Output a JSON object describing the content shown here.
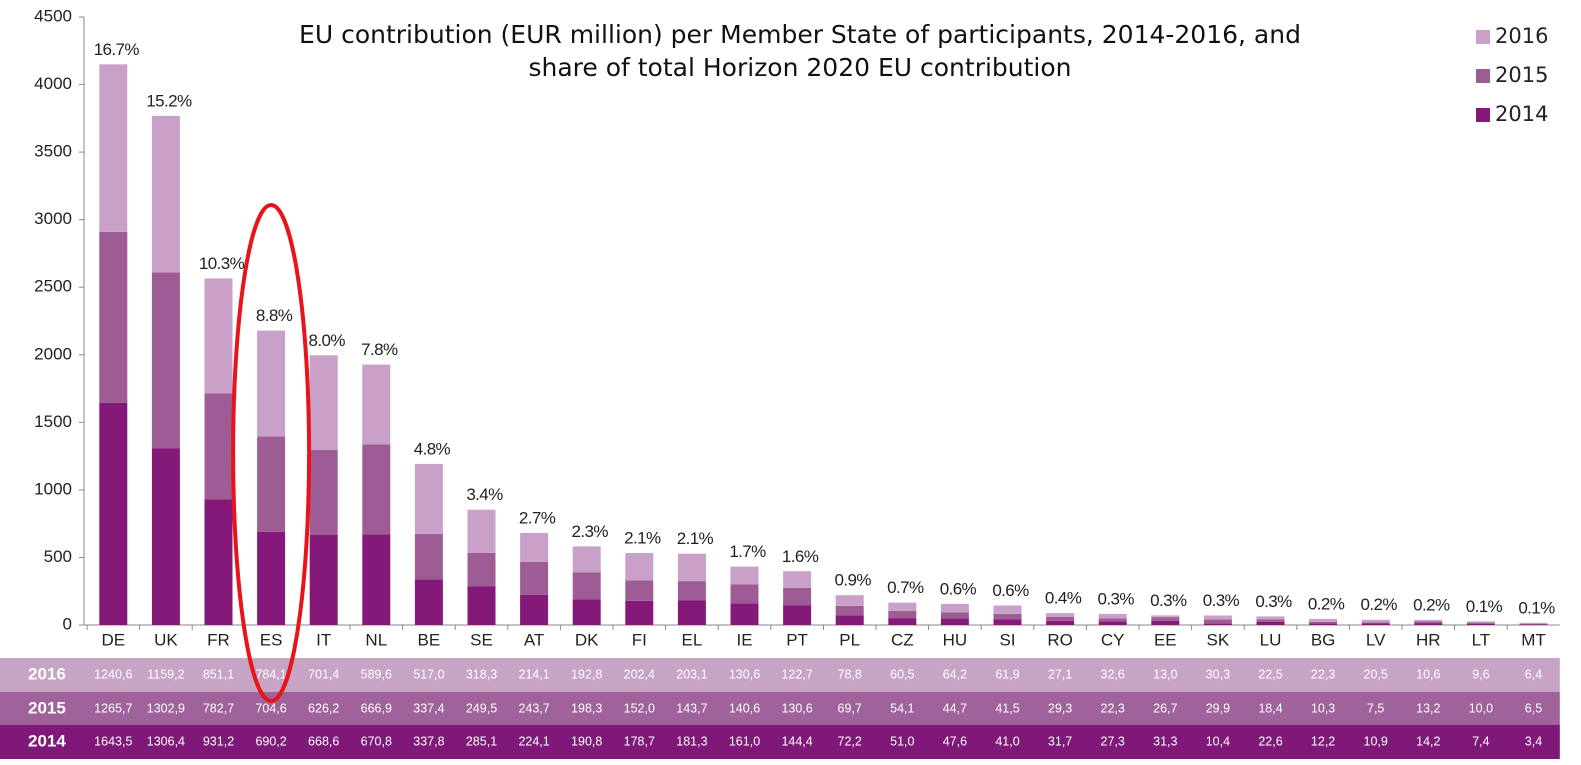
{
  "chart_data": {
    "type": "stacked_bar",
    "title": "EU contribution (EUR million) per Member State of participants, 2014-2016, and\nshare of total Horizon 2020 EU contribution",
    "categories": [
      "DE",
      "UK",
      "FR",
      "ES",
      "IT",
      "NL",
      "BE",
      "SE",
      "AT",
      "DK",
      "FI",
      "EL",
      "IE",
      "PT",
      "PL",
      "CZ",
      "HU",
      "SI",
      "RO",
      "CY",
      "EE",
      "SK",
      "LU",
      "BG",
      "LV",
      "HR",
      "LT",
      "MT"
    ],
    "series": [
      {
        "name": "2014",
        "color": "#84197a",
        "table_color": "#7f1878",
        "values": [
          1643.5,
          1306.4,
          931.2,
          690.2,
          668.6,
          670.8,
          337.8,
          285.1,
          224.1,
          190.8,
          178.7,
          181.3,
          161.0,
          144.4,
          72.2,
          51.0,
          47.6,
          41.0,
          31.7,
          27.3,
          31.3,
          10.4,
          22.6,
          12.2,
          10.9,
          14.2,
          7.4,
          3.4
        ],
        "value_labels": [
          "1643,5",
          "1306,4",
          "931,2",
          "690,2",
          "668,6",
          "670,8",
          "337,8",
          "285,1",
          "224,1",
          "190,8",
          "178,7",
          "181,3",
          "161,0",
          "144,4",
          "72,2",
          "51,0",
          "47,6",
          "41,0",
          "31,7",
          "27,3",
          "31,3",
          "10,4",
          "22,6",
          "12,2",
          "10,9",
          "14,2",
          "7,4",
          "3,4"
        ]
      },
      {
        "name": "2015",
        "color": "#9e5c95",
        "table_color": "#a0629a",
        "values": [
          1265.7,
          1302.9,
          782.7,
          704.6,
          626.2,
          666.9,
          337.4,
          249.5,
          243.7,
          198.3,
          152.0,
          143.7,
          140.6,
          130.6,
          69.7,
          54.1,
          44.7,
          41.5,
          29.3,
          22.3,
          26.7,
          29.9,
          18.4,
          10.3,
          7.5,
          13.2,
          10.0,
          6.5
        ],
        "value_labels": [
          "1265,7",
          "1302,9",
          "782,7",
          "704,6",
          "626,2",
          "666,9",
          "337,4",
          "249,5",
          "243,7",
          "198,3",
          "152,0",
          "143,7",
          "140,6",
          "130,6",
          "69,7",
          "54,1",
          "44,7",
          "41,5",
          "29,3",
          "22,3",
          "26,7",
          "29,9",
          "18,4",
          "10,3",
          "7,5",
          "13,2",
          "10,0",
          "6,5"
        ]
      },
      {
        "name": "2016",
        "color": "#c9a0c8",
        "table_color": "#c7a3c4",
        "values": [
          1240.6,
          1159.2,
          851.1,
          784.1,
          701.4,
          589.6,
          517.0,
          318.3,
          214.1,
          192.8,
          202.4,
          203.1,
          130.6,
          122.7,
          78.8,
          60.5,
          64.2,
          61.9,
          27.1,
          32.6,
          13.0,
          30.3,
          22.5,
          22.3,
          20.5,
          10.6,
          9.6,
          6.4
        ],
        "value_labels": [
          "1240,6",
          "1159,2",
          "851,1",
          "784,1",
          "701,4",
          "589,6",
          "517,0",
          "318,3",
          "214,1",
          "192,8",
          "202,4",
          "203,1",
          "130,6",
          "122,7",
          "78,8",
          "60,5",
          "64,2",
          "61,9",
          "27,1",
          "32,6",
          "13,0",
          "30,3",
          "22,5",
          "22,3",
          "20,5",
          "10,6",
          "9,6",
          "6,4"
        ]
      }
    ],
    "share_labels": [
      "16.7%",
      "15.2%",
      "10.3%",
      "8.8%",
      "8.0%",
      "7.8%",
      "4.8%",
      "3.4%",
      "2.7%",
      "2.3%",
      "2.1%",
      "2.1%",
      "1.7%",
      "1.6%",
      "0.9%",
      "0.7%",
      "0.6%",
      "0.6%",
      "0.4%",
      "0.3%",
      "0.3%",
      "0.3%",
      "0.3%",
      "0.2%",
      "0.2%",
      "0.2%",
      "0.1%",
      "0.1%"
    ],
    "ylim": [
      0,
      4500
    ],
    "yticks": [
      0,
      500,
      1000,
      1500,
      2000,
      2500,
      3000,
      3500,
      4000,
      4500
    ],
    "legend": "top-right"
  }
}
